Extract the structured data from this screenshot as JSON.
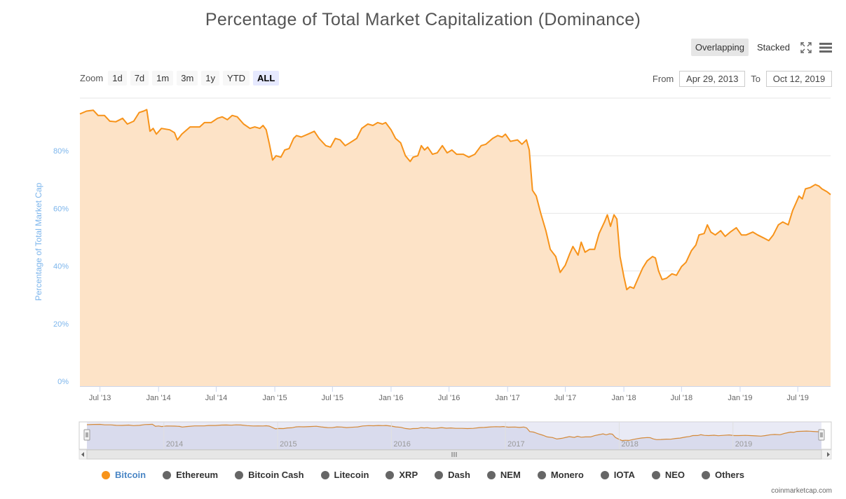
{
  "title": "Percentage of Total Market Capitalization (Dominance)",
  "view_buttons": [
    {
      "label": "Overlapping",
      "active": true
    },
    {
      "label": "Stacked",
      "active": false
    }
  ],
  "toolbar": {
    "fullscreen_icon": "fullscreen-icon",
    "menu_icon": "hamburger-menu-icon"
  },
  "zoom": {
    "label": "Zoom",
    "buttons": [
      {
        "label": "1d"
      },
      {
        "label": "7d"
      },
      {
        "label": "1m"
      },
      {
        "label": "3m"
      },
      {
        "label": "1y"
      },
      {
        "label": "YTD"
      },
      {
        "label": "ALL",
        "active": true
      }
    ]
  },
  "range": {
    "from_label": "From",
    "from_value": "Apr 29, 2013",
    "to_label": "To",
    "to_value": "Oct 12, 2019"
  },
  "legend": [
    {
      "label": "Bitcoin",
      "active": true
    },
    {
      "label": "Ethereum"
    },
    {
      "label": "Bitcoin Cash"
    },
    {
      "label": "Litecoin"
    },
    {
      "label": "XRP"
    },
    {
      "label": "Dash"
    },
    {
      "label": "NEM"
    },
    {
      "label": "Monero"
    },
    {
      "label": "IOTA"
    },
    {
      "label": "NEO"
    },
    {
      "label": "Others"
    }
  ],
  "credit": "coinmarketcap.com",
  "colors": {
    "bitcoin": "#f7931a",
    "fill": "#fde3c7",
    "axis_text": "#7cb5ec",
    "navigator_mask": "#d7d9ec"
  },
  "chart_data": {
    "type": "area",
    "ylabel": "Percentage of Total Market Cap",
    "ylim": [
      0,
      100
    ],
    "yticks": [
      "0%",
      "20%",
      "40%",
      "60%",
      "80%"
    ],
    "ytick_values": [
      0,
      20,
      40,
      60,
      80
    ],
    "xlim": [
      "2013-04-29",
      "2019-10-12"
    ],
    "xticks": [
      {
        "label": "Jul '13",
        "date": "2013-07-01"
      },
      {
        "label": "Jan '14",
        "date": "2014-01-01"
      },
      {
        "label": "Jul '14",
        "date": "2014-07-01"
      },
      {
        "label": "Jan '15",
        "date": "2015-01-01"
      },
      {
        "label": "Jul '15",
        "date": "2015-07-01"
      },
      {
        "label": "Jan '16",
        "date": "2016-01-01"
      },
      {
        "label": "Jul '16",
        "date": "2016-07-01"
      },
      {
        "label": "Jan '17",
        "date": "2017-01-01"
      },
      {
        "label": "Jul '17",
        "date": "2017-07-01"
      },
      {
        "label": "Jan '18",
        "date": "2018-01-01"
      },
      {
        "label": "Jul '18",
        "date": "2018-07-01"
      },
      {
        "label": "Jan '19",
        "date": "2019-01-01"
      },
      {
        "label": "Jul '19",
        "date": "2019-07-01"
      }
    ],
    "navigator_labels": [
      {
        "label": "2014",
        "date": "2014-01-01"
      },
      {
        "label": "2015",
        "date": "2015-01-01"
      },
      {
        "label": "2016",
        "date": "2016-01-01"
      },
      {
        "label": "2017",
        "date": "2017-01-01"
      },
      {
        "label": "2018",
        "date": "2018-01-01"
      },
      {
        "label": "2019",
        "date": "2019-01-01"
      }
    ],
    "series": [
      {
        "name": "Bitcoin",
        "points": [
          [
            "2013-04-29",
            94.5
          ],
          [
            "2013-05-20",
            95.5
          ],
          [
            "2013-06-10",
            95.8
          ],
          [
            "2013-06-25",
            94.0
          ],
          [
            "2013-07-15",
            94.0
          ],
          [
            "2013-08-01",
            92.0
          ],
          [
            "2013-08-20",
            91.8
          ],
          [
            "2013-09-10",
            93.0
          ],
          [
            "2013-09-25",
            91.0
          ],
          [
            "2013-10-15",
            92.0
          ],
          [
            "2013-11-01",
            95.0
          ],
          [
            "2013-11-15",
            95.5
          ],
          [
            "2013-11-25",
            96.0
          ],
          [
            "2013-12-05",
            88.5
          ],
          [
            "2013-12-15",
            89.5
          ],
          [
            "2013-12-25",
            87.5
          ],
          [
            "2014-01-10",
            89.5
          ],
          [
            "2014-02-05",
            89.0
          ],
          [
            "2014-02-20",
            88.0
          ],
          [
            "2014-03-01",
            85.5
          ],
          [
            "2014-03-15",
            87.5
          ],
          [
            "2014-04-10",
            90.0
          ],
          [
            "2014-05-10",
            90.0
          ],
          [
            "2014-05-25",
            91.5
          ],
          [
            "2014-06-15",
            91.5
          ],
          [
            "2014-07-05",
            93.0
          ],
          [
            "2014-07-20",
            93.5
          ],
          [
            "2014-08-05",
            92.5
          ],
          [
            "2014-08-20",
            94.0
          ],
          [
            "2014-09-05",
            93.5
          ],
          [
            "2014-09-25",
            91.0
          ],
          [
            "2014-10-15",
            89.5
          ],
          [
            "2014-10-30",
            90.0
          ],
          [
            "2014-11-15",
            89.5
          ],
          [
            "2014-11-25",
            90.5
          ],
          [
            "2014-12-05",
            89.0
          ],
          [
            "2014-12-15",
            84.0
          ],
          [
            "2014-12-25",
            78.5
          ],
          [
            "2015-01-05",
            80.0
          ],
          [
            "2015-01-20",
            79.5
          ],
          [
            "2015-02-01",
            82.0
          ],
          [
            "2015-02-15",
            82.5
          ],
          [
            "2015-03-01",
            86.0
          ],
          [
            "2015-03-10",
            87.0
          ],
          [
            "2015-03-25",
            86.5
          ],
          [
            "2015-04-15",
            87.5
          ],
          [
            "2015-05-05",
            88.5
          ],
          [
            "2015-05-20",
            86.0
          ],
          [
            "2015-06-10",
            83.5
          ],
          [
            "2015-06-25",
            83.0
          ],
          [
            "2015-07-10",
            86.0
          ],
          [
            "2015-07-25",
            85.5
          ],
          [
            "2015-08-10",
            83.5
          ],
          [
            "2015-08-25",
            84.5
          ],
          [
            "2015-09-15",
            86.0
          ],
          [
            "2015-10-01",
            89.5
          ],
          [
            "2015-10-20",
            91.0
          ],
          [
            "2015-11-05",
            90.5
          ],
          [
            "2015-11-20",
            91.5
          ],
          [
            "2015-12-05",
            91.0
          ],
          [
            "2015-12-15",
            91.5
          ],
          [
            "2016-01-01",
            89.0
          ],
          [
            "2016-01-15",
            86.0
          ],
          [
            "2016-01-31",
            84.5
          ],
          [
            "2016-02-15",
            80.0
          ],
          [
            "2016-03-01",
            78.0
          ],
          [
            "2016-03-10",
            79.5
          ],
          [
            "2016-03-25",
            80.0
          ],
          [
            "2016-04-05",
            83.5
          ],
          [
            "2016-04-15",
            82.0
          ],
          [
            "2016-04-25",
            83.0
          ],
          [
            "2016-05-10",
            80.5
          ],
          [
            "2016-05-25",
            81.0
          ],
          [
            "2016-06-10",
            83.5
          ],
          [
            "2016-06-25",
            81.0
          ],
          [
            "2016-07-10",
            82.0
          ],
          [
            "2016-07-25",
            80.5
          ],
          [
            "2016-08-15",
            80.5
          ],
          [
            "2016-09-01",
            79.5
          ],
          [
            "2016-09-20",
            80.5
          ],
          [
            "2016-10-10",
            83.5
          ],
          [
            "2016-10-25",
            84.0
          ],
          [
            "2016-11-15",
            86.0
          ],
          [
            "2016-12-01",
            87.0
          ],
          [
            "2016-12-15",
            86.5
          ],
          [
            "2016-12-25",
            87.5
          ],
          [
            "2017-01-10",
            85.0
          ],
          [
            "2017-02-01",
            85.5
          ],
          [
            "2017-02-15",
            84.0
          ],
          [
            "2017-03-01",
            85.5
          ],
          [
            "2017-03-10",
            82.0
          ],
          [
            "2017-03-20",
            68.0
          ],
          [
            "2017-04-01",
            66.0
          ],
          [
            "2017-04-15",
            60.0
          ],
          [
            "2017-05-01",
            54.0
          ],
          [
            "2017-05-15",
            47.5
          ],
          [
            "2017-06-01",
            45.0
          ],
          [
            "2017-06-15",
            39.5
          ],
          [
            "2017-07-01",
            42.0
          ],
          [
            "2017-07-15",
            46.0
          ],
          [
            "2017-07-25",
            48.5
          ],
          [
            "2017-08-10",
            45.5
          ],
          [
            "2017-08-20",
            50.0
          ],
          [
            "2017-09-01",
            46.5
          ],
          [
            "2017-09-15",
            47.5
          ],
          [
            "2017-10-01",
            47.5
          ],
          [
            "2017-10-15",
            53.0
          ],
          [
            "2017-11-01",
            57.0
          ],
          [
            "2017-11-10",
            59.5
          ],
          [
            "2017-11-20",
            55.5
          ],
          [
            "2017-12-01",
            59.5
          ],
          [
            "2017-12-10",
            58.0
          ],
          [
            "2017-12-20",
            45.0
          ],
          [
            "2018-01-01",
            38.0
          ],
          [
            "2018-01-10",
            33.5
          ],
          [
            "2018-01-20",
            34.5
          ],
          [
            "2018-02-01",
            34.0
          ],
          [
            "2018-02-15",
            37.5
          ],
          [
            "2018-03-01",
            41.0
          ],
          [
            "2018-03-15",
            43.5
          ],
          [
            "2018-04-01",
            45.0
          ],
          [
            "2018-04-10",
            44.5
          ],
          [
            "2018-04-20",
            40.0
          ],
          [
            "2018-05-01",
            37.0
          ],
          [
            "2018-05-15",
            37.5
          ],
          [
            "2018-06-01",
            39.0
          ],
          [
            "2018-06-15",
            38.5
          ],
          [
            "2018-07-01",
            41.5
          ],
          [
            "2018-07-15",
            43.0
          ],
          [
            "2018-08-01",
            47.0
          ],
          [
            "2018-08-15",
            49.0
          ],
          [
            "2018-08-25",
            52.5
          ],
          [
            "2018-09-10",
            53.0
          ],
          [
            "2018-09-20",
            56.0
          ],
          [
            "2018-10-01",
            53.5
          ],
          [
            "2018-10-15",
            52.5
          ],
          [
            "2018-11-01",
            54.0
          ],
          [
            "2018-11-15",
            52.0
          ],
          [
            "2018-12-01",
            53.5
          ],
          [
            "2018-12-20",
            55.0
          ],
          [
            "2019-01-05",
            52.5
          ],
          [
            "2019-01-20",
            52.5
          ],
          [
            "2019-02-10",
            53.5
          ],
          [
            "2019-02-25",
            52.5
          ],
          [
            "2019-03-15",
            51.5
          ],
          [
            "2019-04-01",
            50.5
          ],
          [
            "2019-04-15",
            52.5
          ],
          [
            "2019-05-01",
            56.0
          ],
          [
            "2019-05-15",
            57.0
          ],
          [
            "2019-06-01",
            56.0
          ],
          [
            "2019-06-15",
            61.0
          ],
          [
            "2019-06-25",
            63.5
          ],
          [
            "2019-07-05",
            66.0
          ],
          [
            "2019-07-15",
            65.0
          ],
          [
            "2019-07-25",
            68.5
          ],
          [
            "2019-08-10",
            69.0
          ],
          [
            "2019-08-25",
            70.0
          ],
          [
            "2019-09-05",
            69.5
          ],
          [
            "2019-09-15",
            68.5
          ],
          [
            "2019-10-01",
            67.5
          ],
          [
            "2019-10-12",
            66.5
          ]
        ]
      }
    ]
  }
}
